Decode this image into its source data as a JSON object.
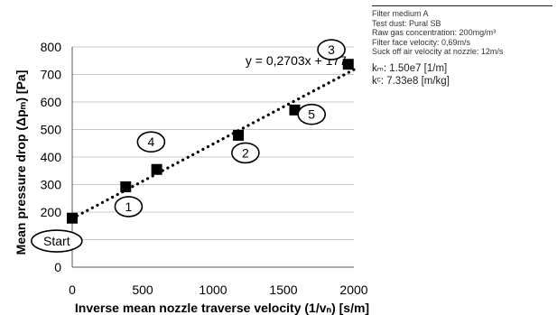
{
  "chart_data": {
    "type": "scatter",
    "title": "",
    "xlabel": "Inverse mean nozzle traverse velocity (1/vₙ) [s/m]",
    "ylabel": "Mean pressure drop (Δpₘ) [Pa]",
    "xlim": [
      0,
      2000
    ],
    "ylim": [
      0,
      800
    ],
    "xticks": [
      0,
      500,
      1000,
      1500,
      2000
    ],
    "yticks": [
      0,
      100,
      200,
      300,
      400,
      500,
      600,
      700,
      800
    ],
    "grid": "horizontal",
    "series": [
      {
        "points": [
          {
            "x": 0,
            "y": 178,
            "label": "Start"
          },
          {
            "x": 380,
            "y": 292,
            "label": "1"
          },
          {
            "x": 1180,
            "y": 479,
            "label": "2"
          },
          {
            "x": 1960,
            "y": 737,
            "label": "3"
          },
          {
            "x": 600,
            "y": 355,
            "label": "4"
          },
          {
            "x": 1580,
            "y": 571,
            "label": "5"
          }
        ],
        "color": "#000000"
      }
    ],
    "trendline": {
      "equation": "y = 0,2703x + 177",
      "slope": 0.2703,
      "intercept": 177,
      "x_range": [
        0,
        2000
      ],
      "style": "dotted"
    },
    "annotations": [
      {
        "text": "Start",
        "x": -110,
        "y": 95
      },
      {
        "text": "1",
        "x": 400,
        "y": 220
      },
      {
        "text": "2",
        "x": 1230,
        "y": 415
      },
      {
        "text": "3",
        "x": 1840,
        "y": 790
      },
      {
        "text": "4",
        "x": 560,
        "y": 455
      },
      {
        "text": "5",
        "x": 1700,
        "y": 555
      }
    ],
    "point_marker_color": "#000000"
  },
  "info_box": {
    "lines": [
      "Filter medium A",
      "Test dust: Pural SB",
      "Raw gas concentration: 200mg/m³",
      "Filter face velocity: 0,69m/s",
      "Suck off air velocity at nozzle: 12m/s"
    ],
    "k_m": "kₘ: 1.50e7 [1/m]",
    "k_c": "kᶜ: 7.33e8 [m/kg]"
  }
}
